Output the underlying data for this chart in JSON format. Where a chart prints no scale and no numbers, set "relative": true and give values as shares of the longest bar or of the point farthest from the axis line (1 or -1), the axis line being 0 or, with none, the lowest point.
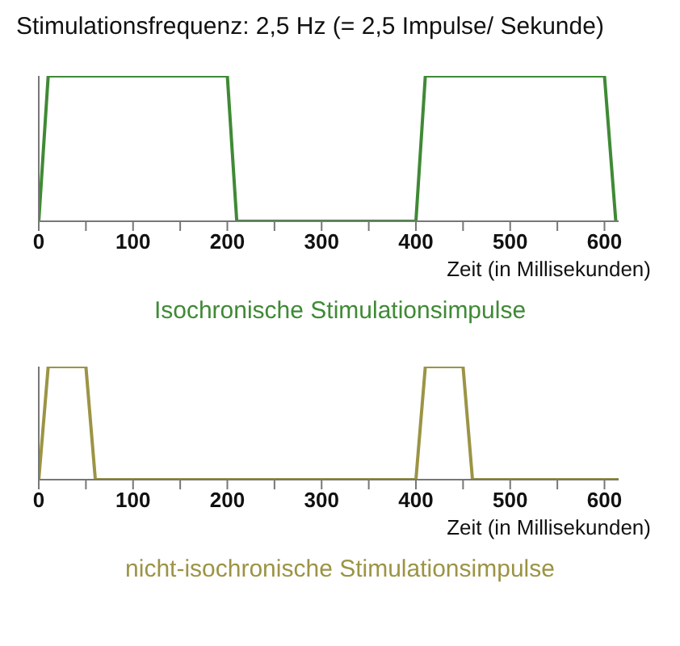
{
  "chart_data": [
    {
      "type": "line",
      "title": "Stimulationsfrequenz: 2,5 Hz (= 2,5 Impulse/ Sekunde)",
      "subtitle": "Isochronische Stimulationsimpulse",
      "xlabel": "Zeit (in Millisekunden)",
      "relative": true,
      "xlim": [
        0,
        615
      ],
      "xticks": [
        0,
        {
          "value": 50,
          "label": null
        },
        100,
        {
          "value": 150,
          "label": null
        },
        200,
        {
          "value": 250,
          "label": null
        },
        300,
        {
          "value": 350,
          "label": null
        },
        400,
        {
          "value": 450,
          "label": null
        },
        500,
        {
          "value": 550,
          "label": null
        },
        600
      ],
      "grid": false,
      "legend": false,
      "marker": "none",
      "line_style": "solid",
      "series": [
        {
          "color": "#3f8a35",
          "x": [
            0,
            10,
            200,
            210,
            400,
            410,
            600,
            612
          ],
          "values": [
            0,
            1,
            1,
            0,
            0,
            1,
            1,
            0
          ]
        }
      ]
    },
    {
      "type": "line",
      "subtitle": "nicht-isochronische Stimulationsimpulse",
      "xlabel": "Zeit (in Millisekunden)",
      "relative": true,
      "xlim": [
        0,
        615
      ],
      "xticks": [
        0,
        {
          "value": 50,
          "label": null
        },
        100,
        {
          "value": 150,
          "label": null
        },
        200,
        {
          "value": 250,
          "label": null
        },
        300,
        {
          "value": 350,
          "label": null
        },
        400,
        {
          "value": 450,
          "label": null
        },
        500,
        {
          "value": 550,
          "label": null
        },
        600
      ],
      "grid": false,
      "legend": false,
      "marker": "none",
      "line_style": "solid",
      "series": [
        {
          "color": "#9c9445",
          "x": [
            0,
            10,
            50,
            60,
            400,
            410,
            450,
            460,
            615
          ],
          "values": [
            0,
            1,
            1,
            0,
            0,
            1,
            1,
            0,
            0
          ]
        }
      ]
    }
  ]
}
